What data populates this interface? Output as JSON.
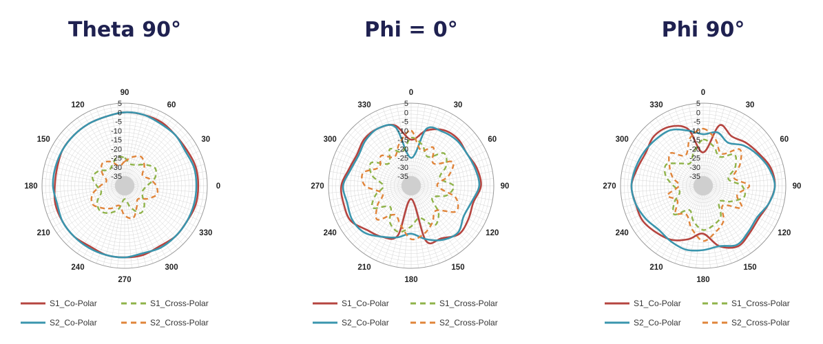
{
  "legend": {
    "s1_co": "S1_Co-Polar",
    "s1_cross": "S1_Cross-Polar",
    "s2_co": "S2_Co-Polar",
    "s2_cross": "S2_Cross-Polar"
  },
  "colors": {
    "s1_co": "#b5443f",
    "s2_co": "#3a95ad",
    "s1_cross": "#8fb34a",
    "s2_cross": "#e0843a",
    "title": "#1f2150",
    "grid": "#d5d5d5",
    "hub": "#cfcfcf"
  },
  "chart_data": [
    {
      "type": "polar",
      "title": "Theta 90°",
      "angle_labels": [
        "90",
        "60",
        "30",
        "0",
        "330",
        "300",
        "270",
        "240",
        "210",
        "180",
        "150",
        "120"
      ],
      "radial_ticks": [
        "5",
        "0",
        "-5",
        "-10",
        "-15",
        "-20",
        "-25",
        "-30",
        "-35"
      ],
      "rlim": [
        -35,
        5
      ],
      "grid": true,
      "legend_position": "bottom",
      "series": [
        {
          "name": "S1_Co-Polar",
          "r": [
            0,
            0,
            0,
            -1,
            -1,
            0,
            0,
            0,
            -1,
            -1,
            -2,
            -1,
            -1,
            -1,
            -2,
            -1,
            -1,
            -1,
            -2,
            -2,
            -1,
            -1,
            -1,
            -1
          ]
        },
        {
          "name": "S2_Co-Polar",
          "r": [
            0,
            0,
            -1,
            -1,
            -2,
            -1,
            -1,
            -1,
            -1,
            -1,
            -1,
            -2,
            -1,
            -1,
            -1,
            -1,
            -1,
            -2,
            -1,
            -1,
            -1,
            -1,
            -1,
            -1
          ]
        },
        {
          "name": "S1_Cross-Polar",
          "r": [
            -25,
            -28,
            -27,
            -24,
            -21,
            -23,
            -28,
            -30,
            -29,
            -25,
            -23,
            -28,
            -33,
            -27,
            -23,
            -21,
            -23,
            -27,
            -25,
            -22,
            -24,
            -28,
            -27,
            -24
          ]
        },
        {
          "name": "S2_Cross-Polar",
          "r": [
            -27,
            -24,
            -22,
            -25,
            -29,
            -26,
            -23,
            -22,
            -26,
            -30,
            -27,
            -22,
            -24,
            -29,
            -26,
            -23,
            -20,
            -22,
            -27,
            -30,
            -26,
            -23,
            -25,
            -29
          ]
        }
      ]
    },
    {
      "type": "polar",
      "title": "Phi = 0°",
      "angle_labels": [
        "0",
        "30",
        "60",
        "90",
        "120",
        "150",
        "180",
        "210",
        "240",
        "270",
        "300",
        "330"
      ],
      "radial_ticks": [
        "5",
        "0",
        "-5",
        "-10",
        "-15",
        "-20",
        "-25",
        "-30",
        "-35"
      ],
      "rlim": [
        -35,
        5
      ],
      "grid": true,
      "legend_position": "bottom",
      "series": [
        {
          "name": "S1_Co-Polar",
          "r": [
            -15,
            -9,
            -5,
            -4,
            -5,
            -3,
            -2,
            -5,
            -4,
            -3,
            -7,
            -9,
            -33,
            -12,
            -8,
            -6,
            -2,
            -2,
            -2,
            -5,
            -6,
            -4,
            -4,
            -6
          ]
        },
        {
          "name": "S2_Co-Polar",
          "r": [
            -25,
            -8,
            -6,
            -5,
            -5,
            -4,
            -3,
            -6,
            -7,
            -4,
            -6,
            -10,
            -14,
            -11,
            -8,
            -4,
            -3,
            -4,
            -3,
            -6,
            -7,
            -5,
            -4,
            -7
          ]
        },
        {
          "name": "S1_Cross-Polar",
          "r": [
            -14,
            -17,
            -22,
            -15,
            -18,
            -24,
            -17,
            -20,
            -27,
            -19,
            -15,
            -22,
            -18,
            -14,
            -17,
            -24,
            -16,
            -20,
            -25,
            -18,
            -15,
            -23,
            -17,
            -21
          ]
        },
        {
          "name": "S2_Cross-Polar",
          "r": [
            -10,
            -20,
            -16,
            -23,
            -14,
            -19,
            -26,
            -15,
            -12,
            -21,
            -17,
            -13,
            -11,
            -18,
            -22,
            -14,
            -19,
            -24,
            -15,
            -13,
            -20,
            -17,
            -22,
            -16
          ]
        }
      ]
    },
    {
      "type": "polar",
      "title": "Phi 90°",
      "angle_labels": [
        "0",
        "30",
        "60",
        "90",
        "120",
        "150",
        "180",
        "210",
        "240",
        "270",
        "300",
        "330"
      ],
      "radial_ticks": [
        "5",
        "0",
        "-5",
        "-10",
        "-15",
        "-20",
        "-25",
        "-30",
        "-35"
      ],
      "rlim": [
        -35,
        5
      ],
      "grid": true,
      "legend_position": "bottom",
      "series": [
        {
          "name": "S1_Co-Polar",
          "r": [
            -22,
            -6,
            -9,
            -7,
            -5,
            -2,
            -1,
            -3,
            -5,
            -4,
            -2,
            -6,
            -14,
            -10,
            -6,
            -4,
            -2,
            -2,
            -1,
            -3,
            -4,
            -2,
            -3,
            -8
          ]
        },
        {
          "name": "S2_Co-Polar",
          "r": [
            -12,
            -10,
            -13,
            -9,
            -6,
            -3,
            -1,
            -3,
            -6,
            -5,
            -3,
            -6,
            -5,
            -4,
            -5,
            -6,
            -4,
            -2,
            -1,
            -2,
            -3,
            -4,
            -5,
            -9
          ]
        },
        {
          "name": "S1_Cross-Polar",
          "r": [
            -15,
            -18,
            -22,
            -16,
            -20,
            -26,
            -19,
            -17,
            -23,
            -28,
            -21,
            -18,
            -16,
            -20,
            -25,
            -18,
            -22,
            -27,
            -24,
            -19,
            -17,
            -23,
            -26,
            -21
          ]
        },
        {
          "name": "S2_Cross-Polar",
          "r": [
            -9,
            -14,
            -20,
            -12,
            -17,
            -23,
            -15,
            -21,
            -16,
            -25,
            -18,
            -14,
            -10,
            -16,
            -22,
            -19,
            -24,
            -20,
            -27,
            -23,
            -19,
            -15,
            -21,
            -13
          ]
        }
      ]
    }
  ]
}
